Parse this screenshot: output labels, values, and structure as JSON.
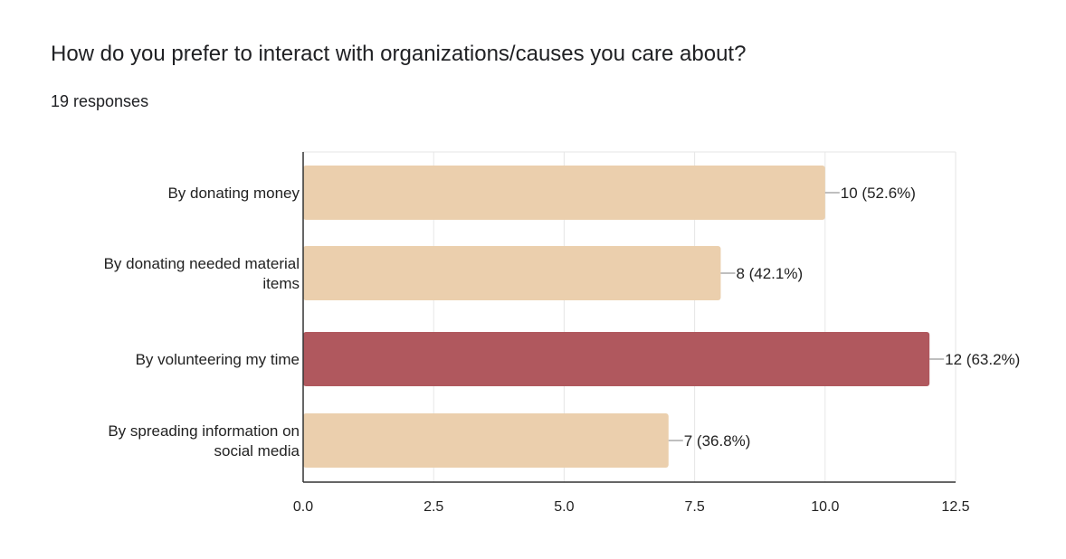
{
  "question": "How do you prefer to interact with organizations/causes you care about?",
  "responses_label": "19 responses",
  "colors": {
    "bar_default": "#ebcfad",
    "bar_highlight": "#b0585e",
    "gridline": "#e6e6e6",
    "axis": "#333333",
    "leader": "#999999"
  },
  "chart_data": {
    "type": "bar",
    "orientation": "horizontal",
    "categories": [
      [
        "By donating money"
      ],
      [
        "By donating needed material",
        "items"
      ],
      [
        "By volunteering my time"
      ],
      [
        "By spreading information on",
        "social media"
      ]
    ],
    "values": [
      10,
      8,
      12,
      7
    ],
    "data_labels": [
      "10 (52.6%)",
      "8 (42.1%)",
      "12 (63.2%)",
      "7 (36.8%)"
    ],
    "highlighted_index": 2,
    "xlim": [
      0,
      12.5
    ],
    "xticks": [
      0,
      2.5,
      5,
      7.5,
      10,
      12.5
    ],
    "xtick_labels": [
      "0.0",
      "2.5",
      "5.0",
      "7.5",
      "10.0",
      "12.5"
    ],
    "grid": true,
    "title": "",
    "xlabel": "",
    "ylabel": ""
  }
}
